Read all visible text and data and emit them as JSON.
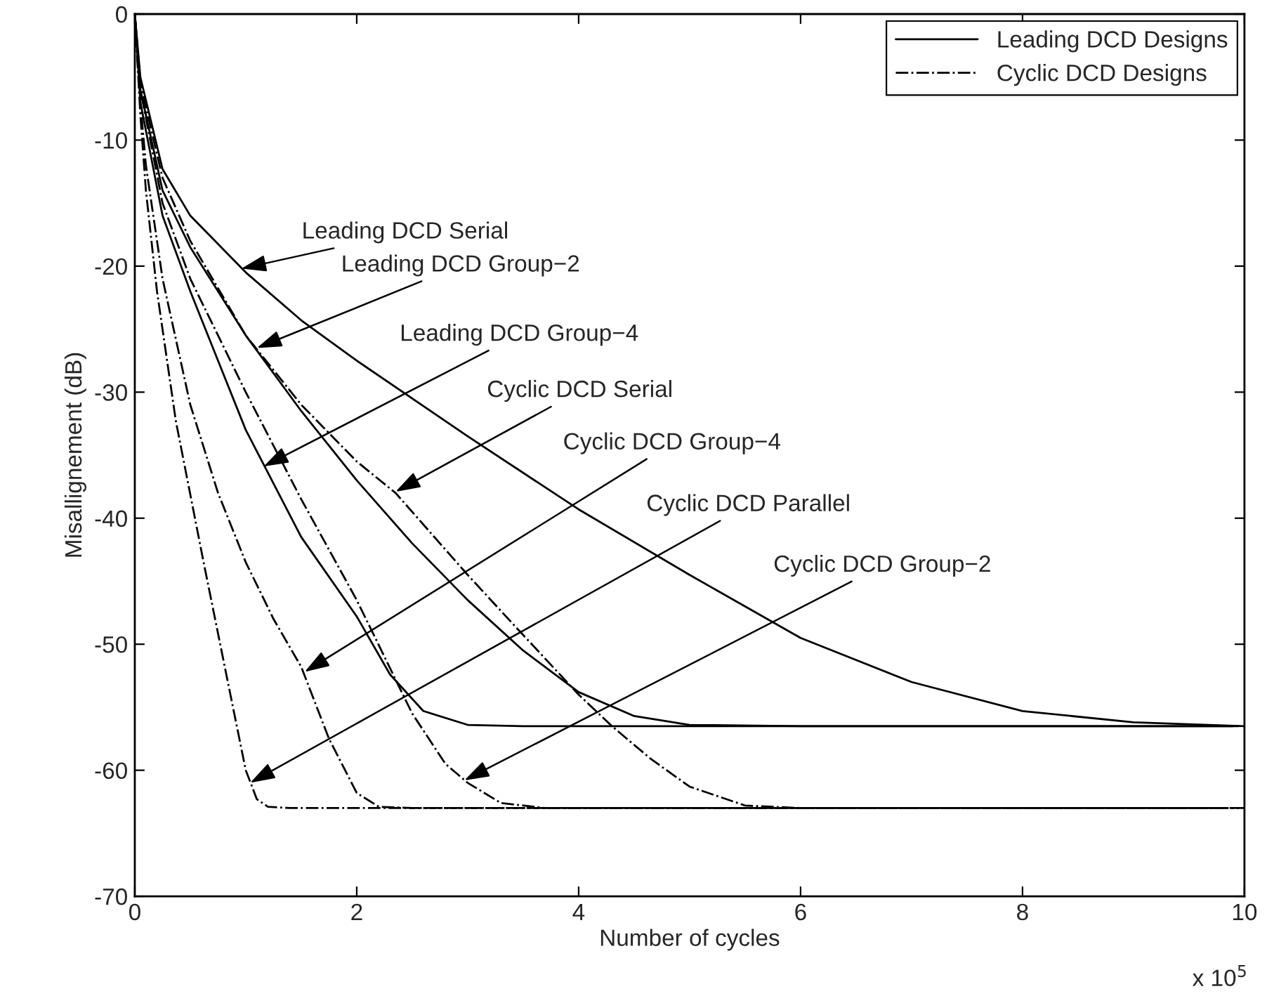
{
  "chart_data": {
    "type": "line",
    "xlabel": "Number of cycles",
    "ylabel": "Misallignement (dB)",
    "xlim": [
      0,
      10
    ],
    "ylim": [
      -70,
      0
    ],
    "xticks": [
      0,
      2,
      4,
      6,
      8,
      10
    ],
    "yticks": [
      -70,
      -60,
      -50,
      -40,
      -30,
      -20,
      -10,
      0
    ],
    "grid": false,
    "legend": "top right",
    "marker": "none",
    "series": [
      {
        "name": "Leading DCD Designs",
        "color": "#000000",
        "line_style": "solid",
        "x": [
          0,
          0.05,
          0.25,
          0.5,
          1,
          1.5,
          2,
          3,
          4,
          5,
          6,
          7,
          8,
          9,
          10
        ],
        "values": [
          0,
          -5,
          -12.3,
          -16,
          -20.5,
          -24.3,
          -27.5,
          -33.5,
          -39.3,
          -44.5,
          -49.5,
          -53,
          -55.3,
          -56.2,
          -56.5
        ]
      },
      {
        "color": "#000000",
        "line_style": "solid",
        "x": [
          0,
          0.05,
          0.25,
          0.5,
          1,
          1.5,
          2,
          2.5,
          3,
          3.5,
          4,
          4.5,
          5,
          6,
          9.95
        ],
        "values": [
          0,
          -6,
          -14,
          -18.5,
          -25.5,
          -31.5,
          -37,
          -42,
          -46.5,
          -50.5,
          -53.8,
          -55.7,
          -56.4,
          -56.5,
          -56.5
        ]
      },
      {
        "color": "#000000",
        "line_style": "solid",
        "x": [
          0,
          0.05,
          0.25,
          0.5,
          1,
          1.5,
          2,
          2.3,
          2.6,
          3,
          3.5,
          9.9
        ],
        "values": [
          0,
          -7,
          -16,
          -22,
          -33,
          -41.5,
          -47.8,
          -52.4,
          -55.3,
          -56.4,
          -56.5,
          -56.5
        ]
      },
      {
        "name": "Cyclic DCD Designs",
        "color": "#000000",
        "line_style": "dashdot",
        "x": [
          0,
          0.05,
          0.25,
          0.5,
          1,
          1.5,
          2,
          2.35,
          3,
          3.44,
          4,
          4.3,
          4.65,
          5,
          5.5,
          6,
          10
        ],
        "values": [
          0,
          -5.5,
          -13,
          -18,
          -25.5,
          -31,
          -35.5,
          -38,
          -44.5,
          -48.7,
          -54,
          -56.5,
          -59.1,
          -61.3,
          -62.8,
          -63,
          -63
        ]
      },
      {
        "color": "#000000",
        "line_style": "dashdot",
        "x": [
          0,
          0.05,
          0.1,
          0.25,
          0.5,
          0.75,
          1,
          1.25,
          1.5,
          1.75,
          2,
          2.2,
          2.5,
          9.95
        ],
        "values": [
          0,
          -7,
          -12,
          -21,
          -31,
          -38,
          -43.5,
          -48,
          -51.8,
          -57.5,
          -61.8,
          -62.9,
          -63,
          -63
        ]
      },
      {
        "color": "#000000",
        "line_style": "dashdot",
        "x": [
          0,
          0.05,
          0.1,
          0.2,
          0.37,
          0.62,
          0.85,
          1.0,
          1.1,
          1.2,
          1.4,
          9.9
        ],
        "values": [
          0,
          -8,
          -14,
          -22,
          -32.3,
          -43.5,
          -53.5,
          -60,
          -62.3,
          -62.9,
          -63,
          -63
        ]
      },
      {
        "color": "#000000",
        "line_style": "dashdot",
        "x": [
          0,
          0.05,
          0.25,
          0.5,
          1,
          1.5,
          2,
          2.5,
          2.8,
          3.0,
          3.3,
          3.7,
          9.85
        ],
        "values": [
          0,
          -6,
          -15,
          -21,
          -30,
          -38.5,
          -46.5,
          -55.5,
          -59.5,
          -61,
          -62.6,
          -63,
          -63
        ]
      }
    ],
    "annotations": [
      {
        "text": "Leading DCD Serial",
        "x": 0.96,
        "y": -20.2
      },
      {
        "text": "Leading DCD Group−2",
        "x": 1.1,
        "y": -26.5
      },
      {
        "text": "Leading DCD Group−4",
        "x": 1.16,
        "y": -35.9
      },
      {
        "text": "Cyclic DCD Serial",
        "x": 2.35,
        "y": -37.9
      },
      {
        "text": "Cyclic DCD Group−4",
        "x": 1.53,
        "y": -52.2
      },
      {
        "text": "Cyclic DCD Parallel",
        "x": 1.04,
        "y": -61
      },
      {
        "text": "Cyclic DCD Group−2",
        "x": 2.97,
        "y": -60.8
      },
      "x 10$^{5}$"
    ]
  }
}
